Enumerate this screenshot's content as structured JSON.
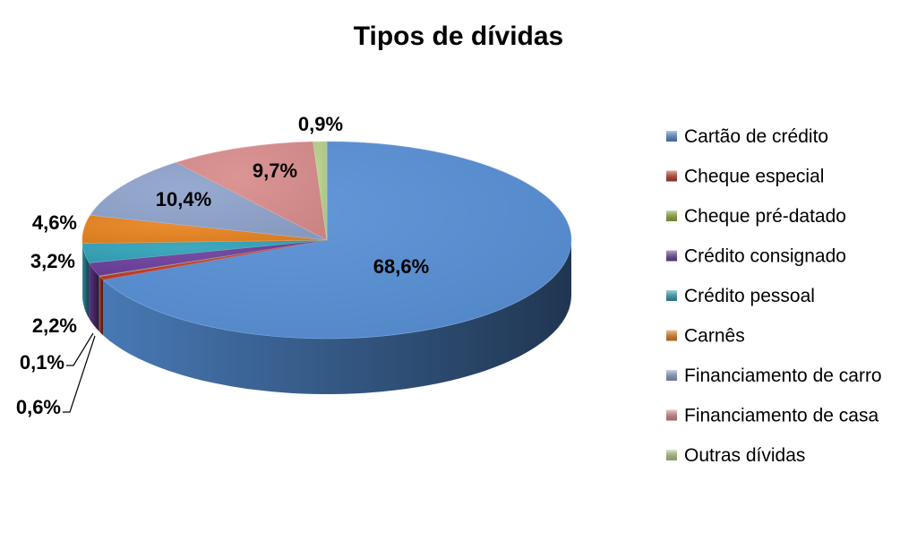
{
  "chart_data": {
    "type": "pie",
    "title": "Tipos de dívidas",
    "categories": [
      "Cartão de crédito",
      "Cheque especial",
      "Cheque pré-datado",
      "Crédito consignado",
      "Crédito pessoal",
      "Carnês",
      "Financiamento de carro",
      "Financiamento de casa",
      "Outras dívidas"
    ],
    "values": [
      68.6,
      0.6,
      0.1,
      2.2,
      3.2,
      4.6,
      10.4,
      9.7,
      0.9
    ],
    "labels": [
      "68,6%",
      "0,6%",
      "0,1%",
      "2,2%",
      "3,2%",
      "4,6%",
      "10,4%",
      "9,7%",
      "0,9%"
    ],
    "colors": [
      "#558ED5",
      "#C0392B",
      "#8DB33A",
      "#6A3D9A",
      "#31A2B8",
      "#E8821E",
      "#8EA3CC",
      "#D98C8C",
      "#B5CF8A"
    ],
    "legend_position": "right",
    "style": "3d-pie"
  }
}
